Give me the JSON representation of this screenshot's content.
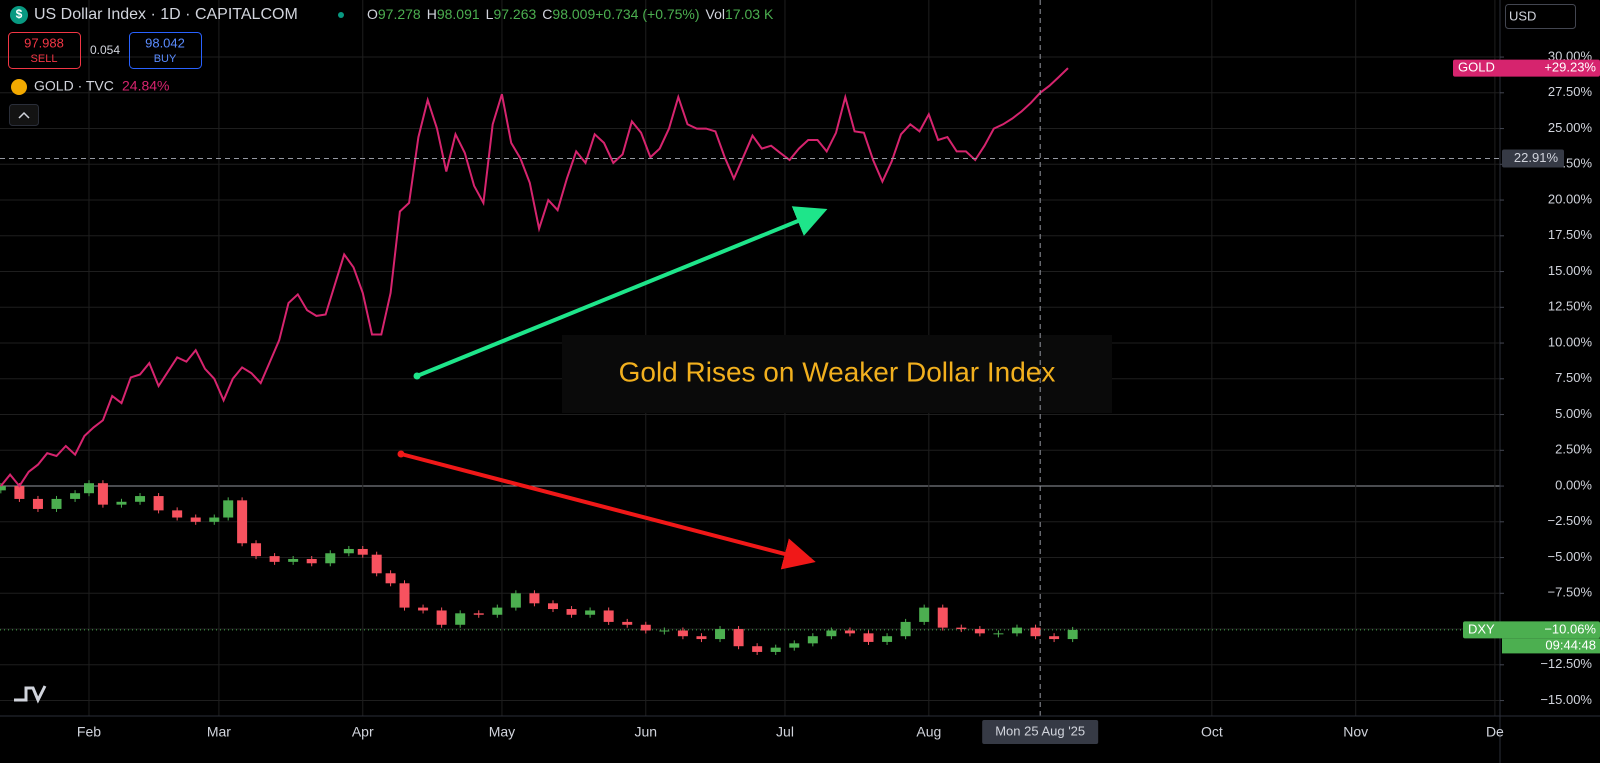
{
  "chart_data": {
    "type": "line",
    "title": "US Dollar Index · 1D · CAPITALCOM",
    "ohlc": [
      {
        "key": "O",
        "text": "97.278"
      },
      {
        "key": "H",
        "text": "98.091"
      },
      {
        "key": "L",
        "text": "97.263"
      },
      {
        "key": "C",
        "text": "98.009"
      },
      {
        "key": "",
        "text": "+0.734 (+0.75%)"
      },
      {
        "key": "Vol",
        "text": "17.03 K"
      }
    ],
    "sell": {
      "price": "97.988",
      "label": "SELL"
    },
    "spread": "0.054",
    "buy": {
      "price": "98.042",
      "label": "BUY"
    },
    "currency": "USD",
    "annotation": "Gold Rises on Weaker Dollar Index",
    "xlim": [
      11.82,
      335.1
    ],
    "xticks": [
      {
        "value": 31,
        "label": "Feb"
      },
      {
        "value": 59,
        "label": "Mar"
      },
      {
        "value": 90,
        "label": "Apr"
      },
      {
        "value": 120,
        "label": "May"
      },
      {
        "value": 151,
        "label": "Jun"
      },
      {
        "value": 181,
        "label": "Jul"
      },
      {
        "value": 212,
        "label": "Aug"
      },
      {
        "value": 273,
        "label": "Oct"
      },
      {
        "value": 304,
        "label": "Nov"
      },
      {
        "value": 334,
        "label": "De"
      }
    ],
    "ylim": [
      -16.08,
      33.99
    ],
    "yticks": [
      {
        "value": 30,
        "label": "30.00%"
      },
      {
        "value": 27.5,
        "label": "27.50%"
      },
      {
        "value": 25,
        "label": "25.00%"
      },
      {
        "value": 22.5,
        "label": "22.50%"
      },
      {
        "value": 20,
        "label": "20.00%"
      },
      {
        "value": 17.5,
        "label": "17.50%"
      },
      {
        "value": 15,
        "label": "15.00%"
      },
      {
        "value": 12.5,
        "label": "12.50%"
      },
      {
        "value": 10,
        "label": "10.00%"
      },
      {
        "value": 7.5,
        "label": "7.50%"
      },
      {
        "value": 5,
        "label": "5.00%"
      },
      {
        "value": 2.5,
        "label": "2.50%"
      },
      {
        "value": 0,
        "label": "0.00%"
      },
      {
        "value": -2.5,
        "label": "−2.50%"
      },
      {
        "value": -5,
        "label": "−5.00%"
      },
      {
        "value": -7.5,
        "label": "−7.50%"
      },
      {
        "value": -10,
        "label": "−10.00%"
      },
      {
        "value": -12.5,
        "label": "−12.50%"
      },
      {
        "value": -15,
        "label": "−15.00%"
      }
    ],
    "grid": true,
    "crosshair": {
      "x": {
        "value": 236,
        "label": "Mon 25 Aug '25"
      },
      "y": {
        "value": 22.91,
        "label": "22.91%"
      }
    },
    "series": [
      {
        "name": "GOLD · TVC",
        "legend_value": "24.84%",
        "tag": "GOLD",
        "end_label": "+29.23%",
        "color": "#d6246e",
        "x": [
          12,
          14,
          16,
          18,
          20,
          22,
          24,
          26,
          28,
          30,
          32,
          34,
          36,
          38,
          40,
          42,
          44,
          46,
          48,
          50,
          52,
          54,
          56,
          58,
          60,
          62,
          64,
          66,
          68,
          70,
          72,
          74,
          76,
          78,
          80,
          82,
          84,
          86,
          88,
          90,
          92,
          94,
          96,
          98,
          100,
          102,
          104,
          106,
          108,
          110,
          112,
          114,
          116,
          118,
          120,
          122,
          124,
          126,
          128,
          130,
          132,
          134,
          136,
          138,
          140,
          142,
          144,
          146,
          148,
          150,
          152,
          154,
          156,
          158,
          160,
          162,
          164,
          166,
          168,
          170,
          172,
          174,
          176,
          178,
          180,
          182,
          184,
          186,
          188,
          190,
          192,
          194,
          196,
          198,
          200,
          202,
          204,
          206,
          208,
          210,
          212,
          214,
          216,
          218,
          220,
          222,
          224,
          226,
          228,
          230,
          232,
          234,
          236,
          238,
          240,
          242
        ],
        "values": [
          0,
          0.8,
          0,
          1.0,
          1.5,
          2.3,
          2.1,
          2.8,
          2.2,
          3.5,
          4.1,
          4.6,
          6.3,
          5.8,
          7.6,
          7.8,
          8.6,
          7.0,
          8.0,
          9.0,
          8.7,
          9.5,
          8.2,
          7.5,
          6.0,
          7.5,
          8.3,
          7.9,
          7.2,
          8.7,
          10.2,
          12.8,
          13.4,
          12.3,
          11.9,
          12.0,
          14.1,
          16.2,
          15.3,
          13.5,
          10.6,
          10.6,
          13.5,
          19.2,
          19.8,
          24.4,
          27.0,
          25.0,
          22.0,
          24.6,
          23.3,
          21.0,
          19.8,
          25.3,
          27.4,
          24.0,
          22.9,
          21.2,
          18.0,
          20.0,
          19.3,
          21.5,
          23.4,
          22.6,
          24.6,
          24.0,
          22.6,
          23.2,
          25.5,
          24.7,
          23.0,
          23.6,
          25.0,
          27.2,
          25.3,
          25.0,
          25.0,
          24.8,
          23.0,
          21.5,
          23.0,
          24.5,
          23.6,
          23.8,
          23.3,
          22.8,
          23.6,
          24.2,
          24.2,
          23.4,
          24.7,
          27.2,
          24.8,
          24.7,
          22.8,
          21.3,
          22.7,
          24.6,
          25.3,
          24.8,
          26.0,
          24.2,
          24.4,
          23.4,
          23.4,
          22.8,
          23.8,
          25.0,
          25.3,
          25.7,
          26.2,
          26.8,
          27.5,
          28.0,
          28.6,
          29.23
        ]
      }
    ],
    "candles": {
      "type": "candlestick",
      "tag": "DXY",
      "end_label": "−10.06%",
      "countdown": "09:44:48",
      "up_color": "#4caf50",
      "down_color": "#f7525f",
      "x": [
        12,
        16,
        20,
        24,
        28,
        31,
        34,
        38,
        42,
        46,
        50,
        54,
        58,
        61,
        64,
        67,
        71,
        75,
        79,
        83,
        87,
        90,
        93,
        96,
        99,
        103,
        107,
        111,
        115,
        119,
        123,
        127,
        131,
        135,
        139,
        143,
        147,
        151,
        155,
        159,
        163,
        167,
        171,
        175,
        179,
        183,
        187,
        191,
        195,
        199,
        203,
        207,
        211,
        215,
        219,
        223,
        227,
        231,
        235,
        239,
        243
      ],
      "open": [
        -0.3,
        0,
        -0.9,
        -1.6,
        -0.9,
        -0.5,
        0.2,
        -1.3,
        -1.1,
        -0.7,
        -1.7,
        -2.2,
        -2.5,
        -2.2,
        -1.0,
        -4.0,
        -4.9,
        -5.3,
        -5.1,
        -5.4,
        -4.7,
        -4.4,
        -4.8,
        -6.1,
        -6.8,
        -8.5,
        -8.7,
        -9.7,
        -8.9,
        -9.0,
        -8.5,
        -7.5,
        -8.2,
        -8.6,
        -9.0,
        -8.7,
        -9.5,
        -9.7,
        -10.1,
        -10.1,
        -10.5,
        -10.7,
        -10.0,
        -11.2,
        -11.6,
        -11.3,
        -11.0,
        -10.5,
        -10.1,
        -10.3,
        -10.9,
        -10.5,
        -9.5,
        -8.5,
        -9.9,
        -10.0,
        -10.3,
        -10.3,
        -9.9,
        -10.5,
        -10.7
      ],
      "close": [
        0,
        -0.9,
        -1.6,
        -0.9,
        -0.5,
        0.2,
        -1.3,
        -1.1,
        -0.7,
        -1.7,
        -2.2,
        -2.5,
        -2.2,
        -1.0,
        -4.0,
        -4.9,
        -5.3,
        -5.1,
        -5.4,
        -4.7,
        -4.4,
        -4.8,
        -6.1,
        -6.8,
        -8.5,
        -8.7,
        -9.7,
        -8.9,
        -9.0,
        -8.5,
        -7.5,
        -8.2,
        -8.6,
        -9.0,
        -8.7,
        -9.5,
        -9.7,
        -10.1,
        -10.1,
        -10.5,
        -10.7,
        -10.0,
        -11.2,
        -11.6,
        -11.3,
        -11.0,
        -10.5,
        -10.1,
        -10.3,
        -10.9,
        -10.5,
        -9.5,
        -8.5,
        -9.9,
        -10.0,
        -10.3,
        -10.3,
        -9.9,
        -10.5,
        -10.7,
        -10.06
      ]
    }
  }
}
